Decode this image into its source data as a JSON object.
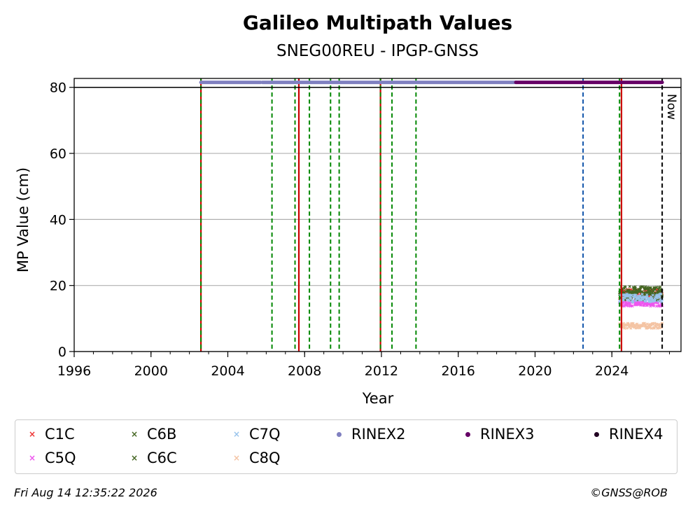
{
  "header": {
    "title": "Galileo Multipath Values",
    "subtitle": "SNEG00REU - IPGP-GNSS"
  },
  "footer": {
    "timestamp": "Fri Aug 14 12:35:22 2026",
    "credit": "©GNSS@ROB"
  },
  "chart_data": {
    "type": "scatter",
    "title": "Galileo Multipath Values",
    "subtitle": "SNEG00REU - IPGP-GNSS",
    "xlabel": "Year",
    "ylabel": "MP Value (cm)",
    "xlim": [
      1996,
      2027.6
    ],
    "ylim": [
      0,
      82.7
    ],
    "x_ticks": [
      "1996",
      "2000",
      "2004",
      "2008",
      "2012",
      "2016",
      "2020",
      "2024"
    ],
    "y_ticks": [
      "0",
      "20",
      "40",
      "60",
      "80"
    ],
    "grid": "horizontal",
    "legend_position": "bottom",
    "now_label": "Now",
    "now_year": 2026.62,
    "series": [
      {
        "name": "C1C",
        "color": "#ee3333",
        "marker": "x",
        "x_range": [
          2024.4,
          2026.62
        ],
        "y_mean": 17.5,
        "y_spread": 1.5
      },
      {
        "name": "C5Q",
        "color": "#ee55ee",
        "marker": "x",
        "x_range": [
          2024.4,
          2026.62
        ],
        "y_mean": 14.5,
        "y_spread": 0.8
      },
      {
        "name": "C6B",
        "color": "#446622",
        "marker": "x",
        "x_range": [
          2024.4,
          2026.62
        ],
        "y_mean": 18.2,
        "y_spread": 1.5
      },
      {
        "name": "C6C",
        "color": "#446622",
        "marker": "x",
        "x_range": [
          2024.4,
          2026.62
        ],
        "y_mean": 17.0,
        "y_spread": 1.5
      },
      {
        "name": "C7Q",
        "color": "#99c4ec",
        "marker": "x",
        "x_range": [
          2024.4,
          2026.62
        ],
        "y_mean": 16.2,
        "y_spread": 1.3
      },
      {
        "name": "C8Q",
        "color": "#f4c4a4",
        "marker": "x",
        "x_range": [
          2024.4,
          2026.62
        ],
        "y_mean": 7.8,
        "y_spread": 0.8
      }
    ],
    "rinex_bars": [
      {
        "name": "RINEX2",
        "color": "#8080c0",
        "y": 81.5,
        "segments": [
          [
            2002.6,
            2005.7
          ],
          [
            2005.8,
            2019.0
          ]
        ]
      },
      {
        "name": "RINEX3",
        "color": "#660066",
        "y": 81.5,
        "segments": [
          [
            2019.0,
            2026.62
          ]
        ]
      },
      {
        "name": "RINEX4",
        "color": "#220022",
        "y": 81.5,
        "segments": []
      }
    ],
    "reference_line_y": 80,
    "event_lines": [
      {
        "x": 2002.6,
        "color": "#cc0000",
        "style": "solid"
      },
      {
        "x": 2002.6,
        "color": "#008800",
        "style": "dashed"
      },
      {
        "x": 2006.3,
        "color": "#008800",
        "style": "dashed"
      },
      {
        "x": 2007.5,
        "color": "#008800",
        "style": "dashed"
      },
      {
        "x": 2007.7,
        "color": "#cc0000",
        "style": "solid"
      },
      {
        "x": 2008.25,
        "color": "#008800",
        "style": "dashed"
      },
      {
        "x": 2009.35,
        "color": "#008800",
        "style": "dashed"
      },
      {
        "x": 2009.8,
        "color": "#008800",
        "style": "dashed"
      },
      {
        "x": 2011.95,
        "color": "#cc0000",
        "style": "solid"
      },
      {
        "x": 2011.95,
        "color": "#008800",
        "style": "dashed"
      },
      {
        "x": 2012.55,
        "color": "#008800",
        "style": "dashed"
      },
      {
        "x": 2013.8,
        "color": "#008800",
        "style": "dashed"
      },
      {
        "x": 2022.5,
        "color": "#1155aa",
        "style": "dashed"
      },
      {
        "x": 2024.4,
        "color": "#008800",
        "style": "dashed"
      },
      {
        "x": 2024.5,
        "color": "#cc0000",
        "style": "solid"
      },
      {
        "x": 2026.62,
        "color": "#000000",
        "style": "dashed"
      }
    ]
  },
  "legend": {
    "items": [
      {
        "label": "C1C",
        "color": "#ee3333",
        "marker": "x"
      },
      {
        "label": "C6B",
        "color": "#446622",
        "marker": "x"
      },
      {
        "label": "C7Q",
        "color": "#99c4ec",
        "marker": "x"
      },
      {
        "label": "RINEX2",
        "color": "#8080c0",
        "marker": "dot"
      },
      {
        "label": "RINEX3",
        "color": "#660066",
        "marker": "dot"
      },
      {
        "label": "RINEX4",
        "color": "#220022",
        "marker": "dot"
      },
      {
        "label": "C5Q",
        "color": "#ee55ee",
        "marker": "x"
      },
      {
        "label": "C6C",
        "color": "#446622",
        "marker": "x"
      },
      {
        "label": "C8Q",
        "color": "#f4c4a4",
        "marker": "x"
      }
    ]
  }
}
